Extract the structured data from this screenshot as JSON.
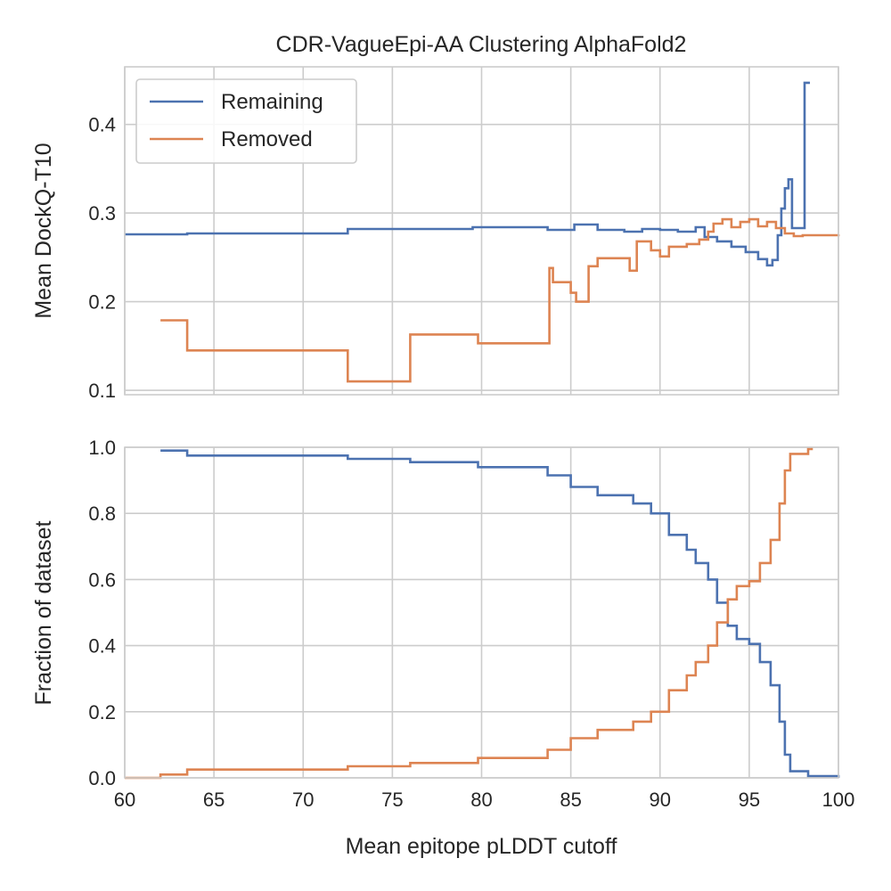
{
  "chart_data": [
    {
      "type": "line",
      "title": "CDR-VagueEpi-AA Clustering AlphaFold2",
      "xlabel": "",
      "ylabel": "Mean DockQ-T10",
      "xlim": [
        60,
        100
      ],
      "ylim": [
        0.095,
        0.465
      ],
      "xticks": [
        60,
        65,
        70,
        75,
        80,
        85,
        90,
        95,
        100
      ],
      "yticks": [
        0.1,
        0.2,
        0.3,
        0.4
      ],
      "ytick_labels": [
        "0.1",
        "0.2",
        "0.3",
        "0.4"
      ],
      "grid": true,
      "legend": {
        "position": "top-left",
        "entries": [
          "Remaining",
          "Removed"
        ]
      },
      "series": [
        {
          "name": "Remaining",
          "color": "#4c72b0",
          "points": [
            [
              60,
              0.276
            ],
            [
              63.5,
              0.277
            ],
            [
              72.5,
              0.282
            ],
            [
              76,
              0.282
            ],
            [
              79.5,
              0.284
            ],
            [
              83.7,
              0.281
            ],
            [
              85.2,
              0.287
            ],
            [
              86.5,
              0.281
            ],
            [
              88,
              0.279
            ],
            [
              89,
              0.282
            ],
            [
              90,
              0.281
            ],
            [
              91,
              0.279
            ],
            [
              92,
              0.284
            ],
            [
              92.5,
              0.273
            ],
            [
              93.2,
              0.268
            ],
            [
              94,
              0.262
            ],
            [
              94.8,
              0.256
            ],
            [
              95.5,
              0.248
            ],
            [
              96,
              0.241
            ],
            [
              96.3,
              0.247
            ],
            [
              96.6,
              0.275
            ],
            [
              96.8,
              0.305
            ],
            [
              97,
              0.328
            ],
            [
              97.2,
              0.338
            ],
            [
              97.4,
              0.283
            ],
            [
              98,
              0.283
            ],
            [
              98.1,
              0.447
            ],
            [
              98.4,
              0.447
            ]
          ]
        },
        {
          "name": "Removed",
          "color": "#dd8452",
          "points": [
            [
              62,
              0.179
            ],
            [
              63.5,
              0.145
            ],
            [
              72.5,
              0.11
            ],
            [
              76,
              0.163
            ],
            [
              79.8,
              0.153
            ],
            [
              83.7,
              0.153
            ],
            [
              83.8,
              0.238
            ],
            [
              84,
              0.222
            ],
            [
              85,
              0.21
            ],
            [
              85.3,
              0.2
            ],
            [
              86,
              0.24
            ],
            [
              86.5,
              0.249
            ],
            [
              88.3,
              0.235
            ],
            [
              88.7,
              0.268
            ],
            [
              89.5,
              0.258
            ],
            [
              90,
              0.251
            ],
            [
              90.5,
              0.262
            ],
            [
              91.5,
              0.265
            ],
            [
              92.2,
              0.27
            ],
            [
              92.7,
              0.279
            ],
            [
              93,
              0.288
            ],
            [
              93.5,
              0.293
            ],
            [
              94,
              0.284
            ],
            [
              94.5,
              0.29
            ],
            [
              95,
              0.293
            ],
            [
              95.5,
              0.285
            ],
            [
              96,
              0.29
            ],
            [
              96.5,
              0.283
            ],
            [
              97,
              0.277
            ],
            [
              97.5,
              0.274
            ],
            [
              98,
              0.275
            ],
            [
              100,
              0.276
            ]
          ]
        }
      ]
    },
    {
      "type": "line",
      "title": "",
      "xlabel": "Mean epitope pLDDT cutoff",
      "ylabel": "Fraction of dataset",
      "xlim": [
        60,
        100
      ],
      "ylim": [
        0.0,
        1.0
      ],
      "xticks": [
        60,
        65,
        70,
        75,
        80,
        85,
        90,
        95,
        100
      ],
      "xtick_labels": [
        "60",
        "65",
        "70",
        "75",
        "80",
        "85",
        "90",
        "95",
        "100"
      ],
      "yticks": [
        0.0,
        0.2,
        0.4,
        0.6,
        0.8,
        1.0
      ],
      "ytick_labels": [
        "0.0",
        "0.2",
        "0.4",
        "0.6",
        "0.8",
        "1.0"
      ],
      "grid": true,
      "series": [
        {
          "name": "Remaining",
          "color": "#4c72b0",
          "points": [
            [
              62,
              0.99
            ],
            [
              63.5,
              0.975
            ],
            [
              72.5,
              0.965
            ],
            [
              76,
              0.955
            ],
            [
              79.8,
              0.94
            ],
            [
              83.7,
              0.915
            ],
            [
              85,
              0.88
            ],
            [
              86.5,
              0.855
            ],
            [
              88.5,
              0.83
            ],
            [
              89.5,
              0.8
            ],
            [
              90.5,
              0.735
            ],
            [
              91.5,
              0.69
            ],
            [
              92,
              0.65
            ],
            [
              92.7,
              0.6
            ],
            [
              93.2,
              0.53
            ],
            [
              93.8,
              0.46
            ],
            [
              94.3,
              0.42
            ],
            [
              95,
              0.405
            ],
            [
              95.6,
              0.35
            ],
            [
              96.2,
              0.28
            ],
            [
              96.7,
              0.17
            ],
            [
              97,
              0.07
            ],
            [
              97.3,
              0.02
            ],
            [
              98.3,
              0.005
            ],
            [
              100,
              0.0
            ]
          ]
        },
        {
          "name": "Removed",
          "color": "#dd8452",
          "points": [
            [
              60,
              0.0
            ],
            [
              62,
              0.01
            ],
            [
              63.5,
              0.025
            ],
            [
              72.5,
              0.035
            ],
            [
              76,
              0.045
            ],
            [
              79.8,
              0.06
            ],
            [
              83.7,
              0.085
            ],
            [
              85,
              0.12
            ],
            [
              86.5,
              0.145
            ],
            [
              88.5,
              0.17
            ],
            [
              89.5,
              0.2
            ],
            [
              90.5,
              0.265
            ],
            [
              91.5,
              0.31
            ],
            [
              92,
              0.35
            ],
            [
              92.7,
              0.4
            ],
            [
              93.2,
              0.47
            ],
            [
              93.8,
              0.54
            ],
            [
              94.3,
              0.58
            ],
            [
              95,
              0.595
            ],
            [
              95.6,
              0.65
            ],
            [
              96.2,
              0.72
            ],
            [
              96.7,
              0.83
            ],
            [
              97,
              0.93
            ],
            [
              97.3,
              0.98
            ],
            [
              98.3,
              0.995
            ],
            [
              98.5,
              1.0
            ]
          ]
        }
      ]
    }
  ]
}
